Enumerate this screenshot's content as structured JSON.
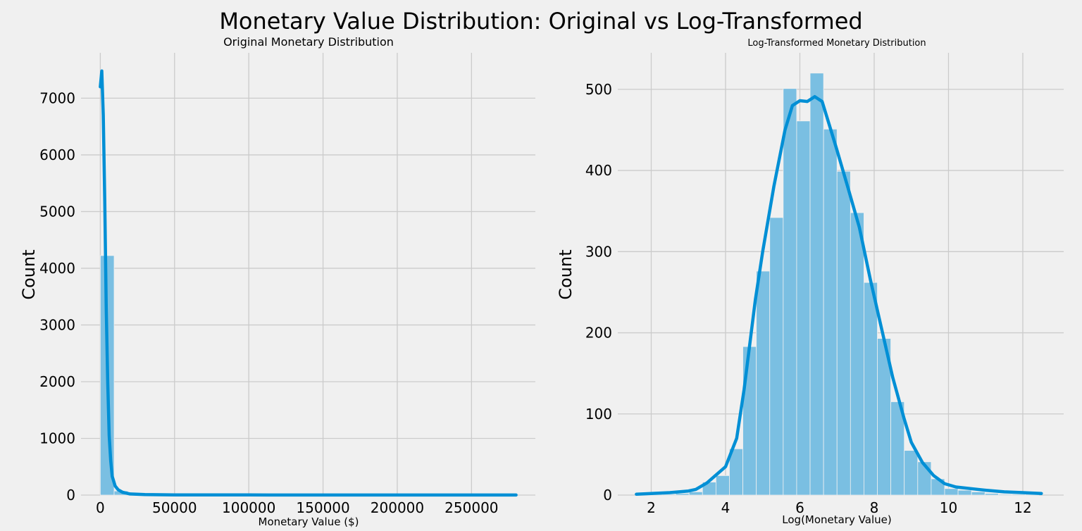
{
  "figure": {
    "title": "Monetary Value Distribution: Original vs Log-Transformed"
  },
  "chart_data": [
    {
      "type": "bar",
      "subtype": "histogram",
      "title": "Original Monetary Distribution",
      "xlabel": "Monetary Value ($)",
      "ylabel": "Count",
      "xlim": [
        -13000,
        293000
      ],
      "ylim": [
        0,
        7800
      ],
      "xticks": [
        0,
        50000,
        100000,
        150000,
        200000,
        250000
      ],
      "yticks": [
        0,
        1000,
        2000,
        3000,
        4000,
        5000,
        6000,
        7000
      ],
      "bin_width": 9300,
      "bin_start": 0,
      "counts": [
        4224,
        72,
        16,
        6,
        3,
        2,
        2,
        1,
        1,
        1,
        1,
        1,
        1,
        1,
        1,
        1,
        1,
        1,
        1,
        1,
        1,
        1,
        1,
        1,
        1,
        1,
        1,
        1,
        1,
        1
      ],
      "kde": {
        "x": [
          0,
          1000,
          2000,
          3000,
          4000,
          5000,
          6000,
          7000,
          8000,
          10000,
          12000,
          15000,
          20000,
          30000,
          50000,
          100000,
          150000,
          200000,
          280000
        ],
        "y": [
          7200,
          7480,
          6700,
          5200,
          3300,
          2000,
          1050,
          600,
          330,
          160,
          95,
          50,
          20,
          10,
          4,
          2,
          1,
          1,
          1
        ]
      },
      "grid": true,
      "bar_color": "#7abfe2",
      "line_color": "#008fd5"
    },
    {
      "type": "bar",
      "subtype": "histogram",
      "title": "Log-Transformed Monetary Distribution",
      "xlabel": "Log(Monetary Value)",
      "ylabel": "Count",
      "xlim": [
        1.1,
        13.1
      ],
      "ylim": [
        0,
        545
      ],
      "xticks": [
        2,
        4,
        6,
        8,
        10,
        12
      ],
      "yticks": [
        0,
        100,
        200,
        300,
        400,
        500
      ],
      "bin_width": 0.362,
      "bin_start": 1.57,
      "counts": [
        1,
        2,
        1,
        2,
        4,
        16,
        24,
        57,
        183,
        276,
        342,
        501,
        461,
        520,
        451,
        399,
        348,
        262,
        193,
        115,
        55,
        41,
        20,
        8,
        6,
        4,
        2,
        1,
        1,
        1
      ],
      "kde": {
        "x": [
          1.6,
          2.0,
          2.5,
          3.0,
          3.2,
          3.5,
          4.0,
          4.3,
          4.5,
          4.8,
          5.0,
          5.3,
          5.6,
          5.8,
          6.0,
          6.2,
          6.4,
          6.6,
          6.8,
          7.0,
          7.3,
          7.6,
          7.9,
          8.2,
          8.5,
          8.8,
          9.0,
          9.3,
          9.6,
          9.9,
          10.2,
          10.6,
          11.0,
          11.5,
          12.0,
          12.5
        ],
        "y": [
          1,
          2,
          3,
          5,
          7,
          15,
          35,
          70,
          130,
          240,
          300,
          380,
          450,
          480,
          486,
          485,
          491,
          485,
          455,
          425,
          378,
          330,
          265,
          205,
          145,
          95,
          65,
          40,
          24,
          14,
          10,
          8,
          6,
          4,
          3,
          2
        ]
      },
      "grid": true,
      "bar_color": "#7abfe2",
      "line_color": "#008fd5"
    }
  ]
}
